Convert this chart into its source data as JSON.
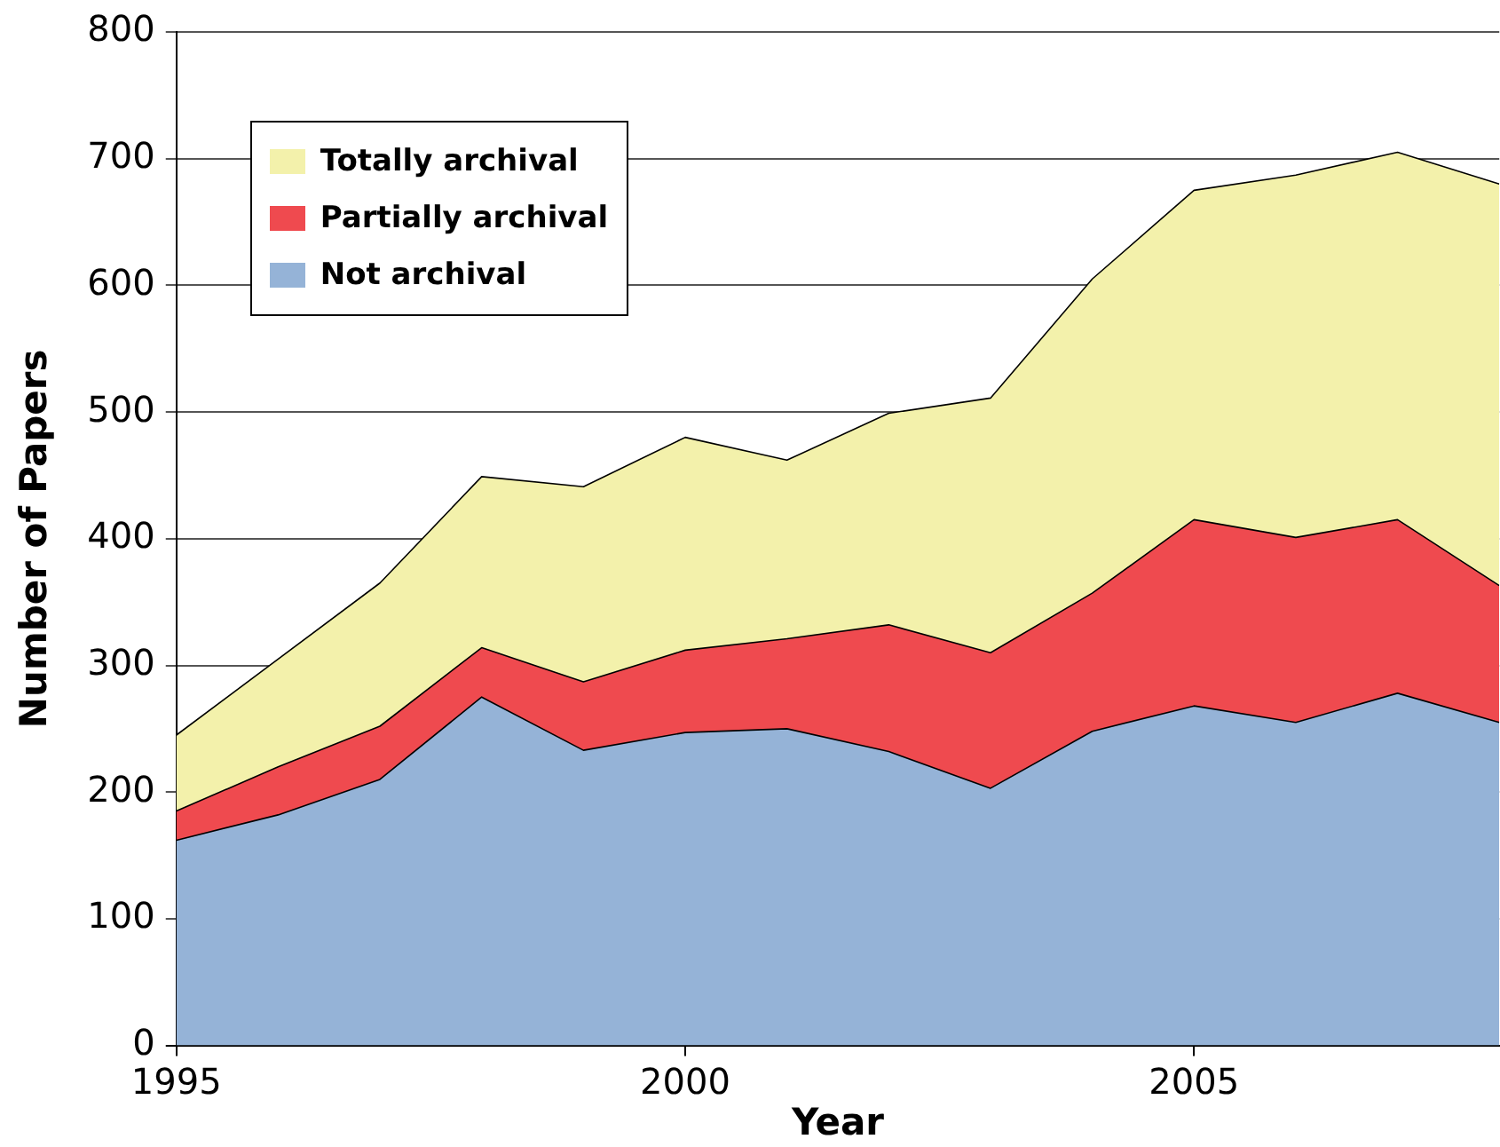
{
  "chart_data": {
    "type": "area",
    "stacked": true,
    "xlabel": "Year",
    "ylabel": "Number of Papers",
    "x": [
      1995,
      1996,
      1997,
      1998,
      1999,
      2000,
      2001,
      2002,
      2003,
      2004,
      2005,
      2006,
      2007,
      2008
    ],
    "series": [
      {
        "name": "Not archival",
        "color": "#95b3d7",
        "values": [
          162,
          182,
          210,
          275,
          233,
          247,
          250,
          232,
          203,
          248,
          268,
          255,
          278,
          255
        ]
      },
      {
        "name": "Partially archival",
        "color": "#ef4a4f",
        "values": [
          23,
          38,
          42,
          39,
          54,
          65,
          71,
          100,
          107,
          109,
          147,
          146,
          137,
          108
        ]
      },
      {
        "name": "Totally archival",
        "color": "#f3f1ab",
        "values": [
          60,
          85,
          113,
          135,
          154,
          168,
          141,
          167,
          201,
          248,
          260,
          286,
          290,
          317
        ]
      }
    ],
    "xlim": [
      1995,
      2008
    ],
    "xticks": [
      1995,
      2000,
      2005
    ],
    "ylim": [
      0,
      800
    ],
    "yticks": [
      0,
      100,
      200,
      300,
      400,
      500,
      600,
      700,
      800
    ],
    "grid": "y",
    "legend": "top left"
  }
}
